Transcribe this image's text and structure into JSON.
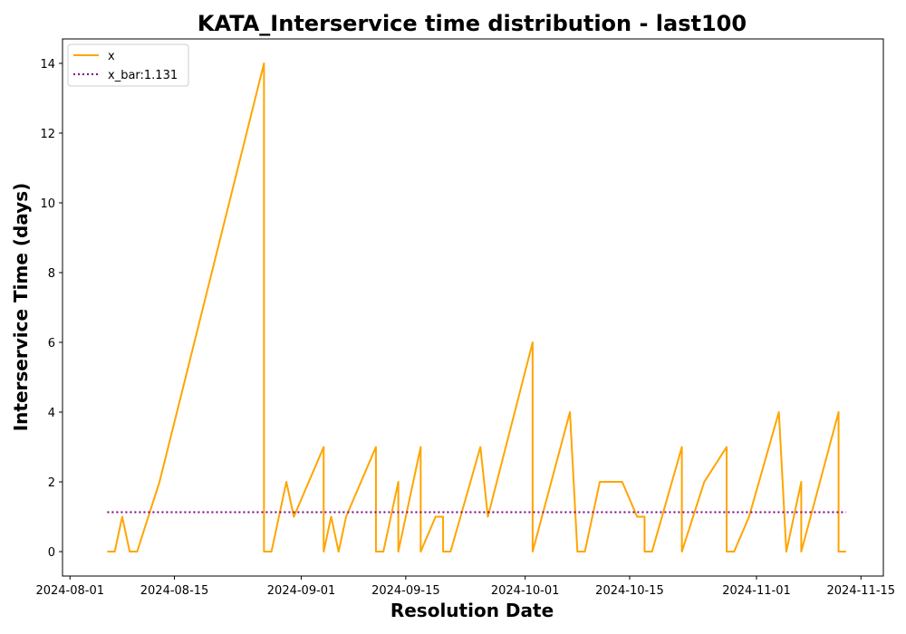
{
  "chart_data": {
    "type": "line",
    "title": "KATA_Interservice time distribution - last100",
    "xlabel": "Resolution Date",
    "ylabel": "Interservice Time (days)",
    "xlim": [
      "2024-07-31",
      "2024-11-18"
    ],
    "ylim": [
      -0.7,
      14.7
    ],
    "x_ticks": [
      "2024-08-01",
      "2024-08-15",
      "2024-09-01",
      "2024-09-15",
      "2024-10-01",
      "2024-10-15",
      "2024-11-01",
      "2024-11-15"
    ],
    "y_ticks": [
      0,
      2,
      4,
      6,
      8,
      10,
      12,
      14
    ],
    "grid": false,
    "legend_position": "top-left",
    "series": [
      {
        "name": "x",
        "color": "#ffa500",
        "style": "solid",
        "points": [
          [
            "2024-08-06",
            0
          ],
          [
            "2024-08-07",
            0
          ],
          [
            "2024-08-08",
            1
          ],
          [
            "2024-08-09",
            0
          ],
          [
            "2024-08-10",
            0
          ],
          [
            "2024-08-13",
            2
          ],
          [
            "2024-08-27",
            14
          ],
          [
            "2024-08-27",
            0
          ],
          [
            "2024-08-28",
            0
          ],
          [
            "2024-08-30",
            2
          ],
          [
            "2024-08-31",
            1
          ],
          [
            "2024-09-04",
            3
          ],
          [
            "2024-09-04",
            0
          ],
          [
            "2024-09-05",
            1
          ],
          [
            "2024-09-06",
            0
          ],
          [
            "2024-09-07",
            1
          ],
          [
            "2024-09-11",
            3
          ],
          [
            "2024-09-11",
            0
          ],
          [
            "2024-09-12",
            0
          ],
          [
            "2024-09-14",
            2
          ],
          [
            "2024-09-14",
            0
          ],
          [
            "2024-09-15",
            1
          ],
          [
            "2024-09-17",
            3
          ],
          [
            "2024-09-17",
            0
          ],
          [
            "2024-09-19",
            1
          ],
          [
            "2024-09-20",
            1
          ],
          [
            "2024-09-20",
            0
          ],
          [
            "2024-09-21",
            0
          ],
          [
            "2024-09-25",
            3
          ],
          [
            "2024-09-26",
            1
          ],
          [
            "2024-10-02",
            6
          ],
          [
            "2024-10-02",
            0
          ],
          [
            "2024-10-07",
            4
          ],
          [
            "2024-10-08",
            0
          ],
          [
            "2024-10-09",
            0
          ],
          [
            "2024-10-11",
            2
          ],
          [
            "2024-10-14",
            2
          ],
          [
            "2024-10-16",
            1
          ],
          [
            "2024-10-17",
            1
          ],
          [
            "2024-10-17",
            0
          ],
          [
            "2024-10-18",
            0
          ],
          [
            "2024-10-22",
            3
          ],
          [
            "2024-10-22",
            0
          ],
          [
            "2024-10-25",
            2
          ],
          [
            "2024-10-28",
            3
          ],
          [
            "2024-10-28",
            0
          ],
          [
            "2024-10-29",
            0
          ],
          [
            "2024-10-31",
            1
          ],
          [
            "2024-11-04",
            4
          ],
          [
            "2024-11-05",
            0
          ],
          [
            "2024-11-07",
            2
          ],
          [
            "2024-11-07",
            0
          ],
          [
            "2024-11-12",
            4
          ],
          [
            "2024-11-12",
            0
          ],
          [
            "2024-11-13",
            0
          ]
        ]
      },
      {
        "name": "x_bar:1.131",
        "color": "#800080",
        "style": "dotted",
        "points": [
          [
            "2024-08-06",
            1.131
          ],
          [
            "2024-11-13",
            1.131
          ]
        ]
      }
    ]
  }
}
